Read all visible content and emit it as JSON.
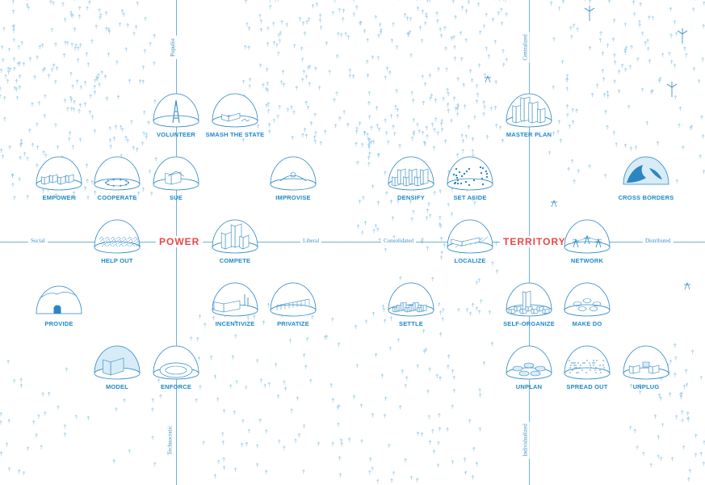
{
  "axes": {
    "power": {
      "label": "POWER",
      "top": "Populist",
      "bottom": "Technocratic",
      "left": "Social",
      "right": "Liberal"
    },
    "territory": {
      "label": "TERRITORY",
      "top": "Centralized",
      "bottom": "Individualized",
      "left": "Consolidated",
      "right": "Distributed"
    }
  },
  "strategies": [
    {
      "id": "volunteer",
      "label": "VOLUNTEER",
      "icon": "ladder-icon"
    },
    {
      "id": "smash-the-state",
      "label": "SMASH THE STATE",
      "icon": "rubble-icon"
    },
    {
      "id": "empower",
      "label": "EMPOWER",
      "icon": "village-icon"
    },
    {
      "id": "cooperate",
      "label": "COOPERATE",
      "icon": "ring-of-people-icon"
    },
    {
      "id": "sue",
      "label": "SUE",
      "icon": "courthouse-icon"
    },
    {
      "id": "improvise",
      "label": "IMPROVISE",
      "icon": "tent-icon"
    },
    {
      "id": "help-out",
      "label": "HELP OUT",
      "icon": "tent-camp-icon"
    },
    {
      "id": "compete",
      "label": "COMPETE",
      "icon": "towers-icon"
    },
    {
      "id": "provide",
      "label": "PROVIDE",
      "icon": "igloo-icon"
    },
    {
      "id": "incentivize",
      "label": "INCENTIVIZE",
      "icon": "factory-icon"
    },
    {
      "id": "privatize",
      "label": "PRIVATIZE",
      "icon": "fence-icon"
    },
    {
      "id": "model",
      "label": "MODEL",
      "icon": "model-block-icon"
    },
    {
      "id": "enforce",
      "label": "ENFORCE",
      "icon": "stadium-icon"
    },
    {
      "id": "master-plan",
      "label": "MASTER PLAN",
      "icon": "skyline-icon"
    },
    {
      "id": "densify",
      "label": "DENSIFY",
      "icon": "dense-city-icon"
    },
    {
      "id": "set-aside",
      "label": "SET ASIDE",
      "icon": "dotted-zones-icon"
    },
    {
      "id": "cross-borders",
      "label": "CROSS BORDERS",
      "icon": "globe-icon"
    },
    {
      "id": "localize",
      "label": "LOCALIZE",
      "icon": "grid-block-icon"
    },
    {
      "id": "network",
      "label": "NETWORK",
      "icon": "power-grid-icon"
    },
    {
      "id": "settle",
      "label": "SETTLE",
      "icon": "settlement-icon"
    },
    {
      "id": "self-organize",
      "label": "SELF-ORGANIZE",
      "icon": "organic-city-icon"
    },
    {
      "id": "make-do",
      "label": "MAKE DO",
      "icon": "patches-icon"
    },
    {
      "id": "unplan",
      "label": "UNPLAN",
      "icon": "blobs-icon"
    },
    {
      "id": "spread-out",
      "label": "SPREAD OUT",
      "icon": "scatter-icon"
    },
    {
      "id": "unplug",
      "label": "UNPLUG",
      "icon": "off-grid-icon"
    }
  ],
  "colors": {
    "axis": "#6fb3d8",
    "label": "#1e88c8",
    "accent": "#e8484a",
    "dome": "#2b86c2",
    "fill": "#d7ecf7",
    "texture": "#8cc6e6"
  }
}
